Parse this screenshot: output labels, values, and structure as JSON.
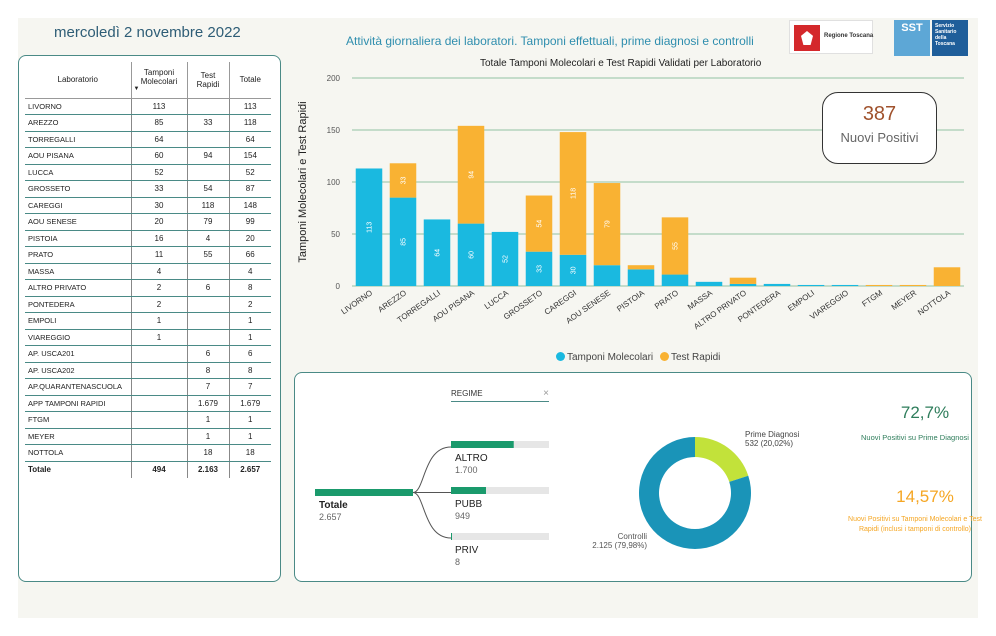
{
  "header": {
    "date": "mercoledì 2 novembre 2022",
    "subtitle": "Attività giornaliera dei laboratori. Tamponi effettuali, prime diagnosi e controlli",
    "logo_rt_text": "Regione Toscana",
    "logo_sst_short": "SST",
    "logo_sst_text": "Servizio Sanitario della Toscana"
  },
  "table": {
    "headers": [
      "Laboratorio",
      "Tamponi Molecolari",
      "Test Rapidi",
      "Totale"
    ],
    "rows": [
      [
        "LIVORNO",
        "113",
        "",
        "113"
      ],
      [
        "AREZZO",
        "85",
        "33",
        "118"
      ],
      [
        "TORREGALLI",
        "64",
        "",
        "64"
      ],
      [
        "AOU PISANA",
        "60",
        "94",
        "154"
      ],
      [
        "LUCCA",
        "52",
        "",
        "52"
      ],
      [
        "GROSSETO",
        "33",
        "54",
        "87"
      ],
      [
        "CAREGGI",
        "30",
        "118",
        "148"
      ],
      [
        "AOU SENESE",
        "20",
        "79",
        "99"
      ],
      [
        "PISTOIA",
        "16",
        "4",
        "20"
      ],
      [
        "PRATO",
        "11",
        "55",
        "66"
      ],
      [
        "MASSA",
        "4",
        "",
        "4"
      ],
      [
        "ALTRO PRIVATO",
        "2",
        "6",
        "8"
      ],
      [
        "PONTEDERA",
        "2",
        "",
        "2"
      ],
      [
        "EMPOLI",
        "1",
        "",
        "1"
      ],
      [
        "VIAREGGIO",
        "1",
        "",
        "1"
      ],
      [
        "AP. USCA201",
        "",
        "6",
        "6"
      ],
      [
        "AP. USCA202",
        "",
        "8",
        "8"
      ],
      [
        "AP.QUARANTENASCUOLA",
        "",
        "7",
        "7"
      ],
      [
        "APP TAMPONI RAPIDI",
        "",
        "1.679",
        "1.679"
      ],
      [
        "FTGM",
        "",
        "1",
        "1"
      ],
      [
        "MEYER",
        "",
        "1",
        "1"
      ],
      [
        "NOTTOLA",
        "",
        "18",
        "18"
      ]
    ],
    "total": [
      "Totale",
      "494",
      "2.163",
      "2.657"
    ]
  },
  "chart_data": {
    "type": "bar",
    "stacked": true,
    "title": "Totale Tamponi Molecolari e Test Rapidi Validati per Laboratorio",
    "xlabel": "",
    "ylabel": "Tamponi Molecolari e Test Rapidi",
    "ylim": [
      0,
      200
    ],
    "yticks": [
      "0",
      "50",
      "100",
      "150",
      "200"
    ],
    "grid": true,
    "legend_position": "bottom",
    "categories": [
      "LIVORNO",
      "AREZZO",
      "TORREGALLI",
      "AOU PISANA",
      "LUCCA",
      "GROSSETO",
      "CAREGGI",
      "AOU SENESE",
      "PISTOIA",
      "PRATO",
      "MASSA",
      "ALTRO PRIVATO",
      "PONTEDERA",
      "EMPOLI",
      "VIAREGGIO",
      "FTGM",
      "MEYER",
      "NOTTOLA"
    ],
    "series": [
      {
        "name": "Tamponi Molecolari",
        "color": "#1ab9e0",
        "values": [
          113,
          85,
          64,
          60,
          52,
          33,
          30,
          20,
          16,
          11,
          4,
          2,
          2,
          1,
          1,
          0,
          0,
          0
        ]
      },
      {
        "name": "Test Rapidi",
        "color": "#f9b233",
        "values": [
          0,
          33,
          0,
          94,
          0,
          54,
          118,
          79,
          4,
          55,
          0,
          6,
          0,
          0,
          0,
          1,
          1,
          18
        ]
      }
    ]
  },
  "kpi": {
    "value": "387",
    "label": "Nuovi Positivi"
  },
  "regime": {
    "title": "REGIME",
    "close": "×",
    "root": {
      "label": "Totale",
      "value": "2.657"
    },
    "children": [
      {
        "label": "ALTRO",
        "value": "1.700",
        "ratio": 0.64
      },
      {
        "label": "PUBB",
        "value": "949",
        "ratio": 0.357
      },
      {
        "label": "PRIV",
        "value": "8",
        "ratio": 0.003
      }
    ]
  },
  "donut": {
    "slices": [
      {
        "name": "Prime Diagnosi",
        "value_label": "532 (20,02%)",
        "fraction": 0.2002,
        "color": "#c2e23a"
      },
      {
        "name": "Controlli",
        "value_label": "2.125 (79,98%)",
        "fraction": 0.7998,
        "color": "#1a94b8"
      }
    ]
  },
  "stats": {
    "pct1": "72,7%",
    "desc1": "Nuovi Positivi su Prime Diagnosi",
    "pct2": "14,57%",
    "desc2": "Nuovi Positivi su Tamponi Molecolari e Test Rapidi (inclusi i tamponi di controllo)"
  }
}
